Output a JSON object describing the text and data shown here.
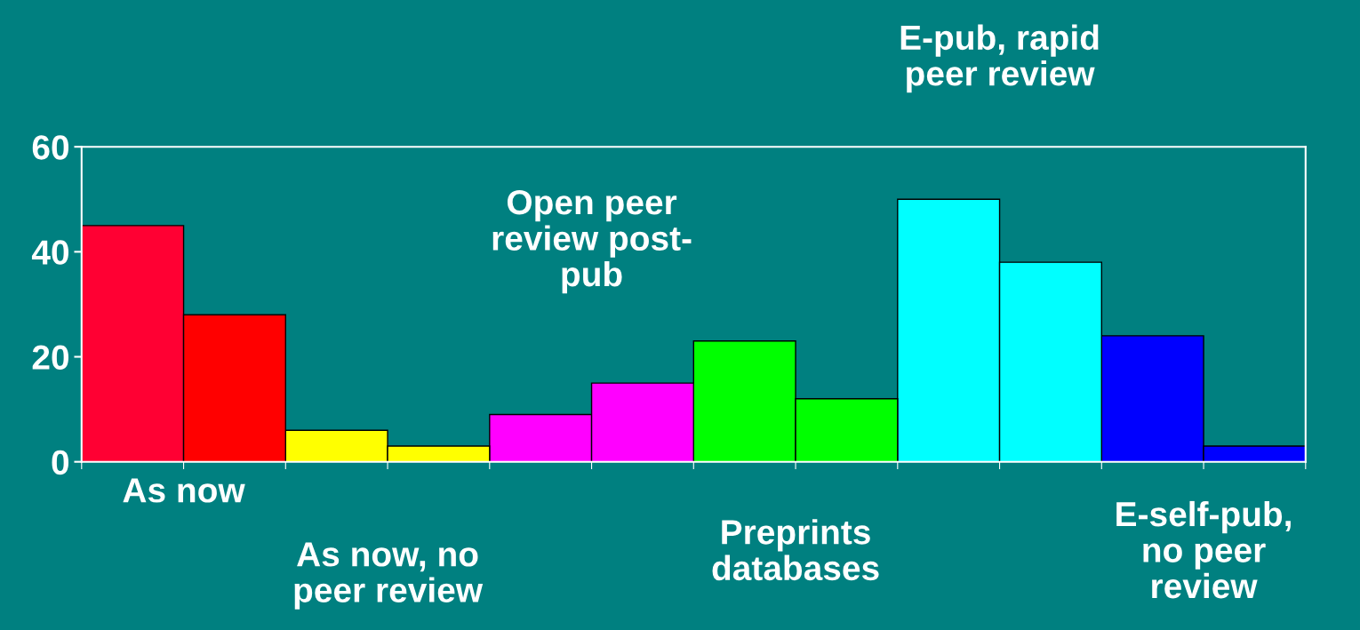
{
  "chart_data": {
    "type": "bar",
    "categories": [
      null,
      null,
      null,
      null,
      null,
      null
    ],
    "annotations": [
      "As now",
      "As now, no\npeer review",
      "Open peer\nreview post-\npub",
      "Preprints\ndatabases",
      "E-pub, rapid\npeer review",
      "E-self-pub,\nno peer\nreview"
    ],
    "series": [
      {
        "colors": [
          "#ff0033",
          "#ffff00",
          "#ff00ff",
          "#00ff00",
          "#00ffff",
          "#0000ff"
        ],
        "values": [
          45,
          6,
          9,
          23,
          50,
          24
        ]
      },
      {
        "colors": [
          "#ff0000",
          "#ffff00",
          "#ff00ff",
          "#00ff00",
          "#00ffff",
          "#0000ff"
        ],
        "values": [
          28,
          3,
          15,
          12,
          38,
          3
        ]
      }
    ],
    "ylim": [
      0,
      60
    ],
    "yticks": [
      0,
      20,
      40,
      60
    ],
    "grid": false
  }
}
